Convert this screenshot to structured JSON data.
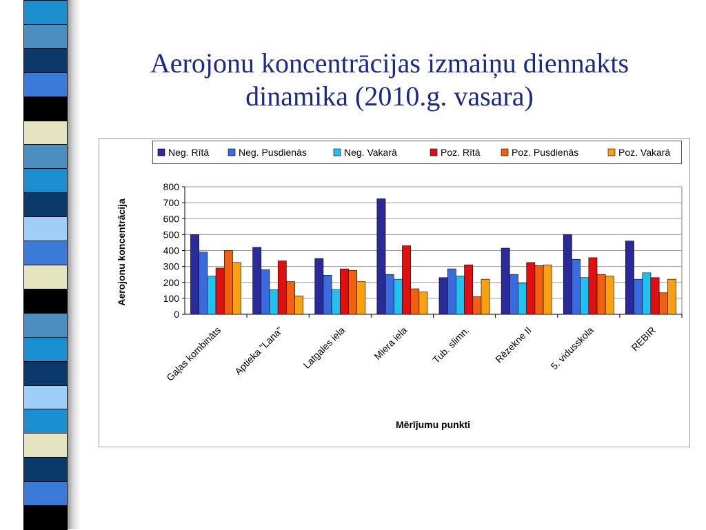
{
  "slide": {
    "title_line1": "Aerojonu koncentrācijas izmaiņu diennakts",
    "title_line2": "dinamika (2010.g. vasara)"
  },
  "decoration": {
    "stripe_colors": [
      "#1a8fd0",
      "#4a8fbf",
      "#0a3a6a",
      "#3a7ad8",
      "#000000",
      "#e4e4c0",
      "#4a8fbf",
      "#1a8fd0",
      "#0a3a6a",
      "#9ecff8",
      "#3a7ad8",
      "#e4e4c0",
      "#000000",
      "#4a8fbf",
      "#1a8fd0",
      "#0a3a6a",
      "#9ecff8",
      "#1a8fd0",
      "#e4e4c0",
      "#0a3a6a",
      "#3a7ad8",
      "#000000"
    ]
  },
  "chart_data": {
    "type": "bar",
    "xlabel": "Mērījumu punkti",
    "ylabel": "Aerojonu koncentrācija",
    "ylim": [
      0,
      800
    ],
    "yticks": [
      0,
      100,
      200,
      300,
      400,
      500,
      600,
      700,
      800
    ],
    "grid": true,
    "legend_position": "top",
    "categories": [
      "Gaļas kombināts",
      "Aptieka \"Lana\"",
      "Latgales iela",
      "Miera iela",
      "Tub. slimn.",
      "Rēzekne II",
      "5. vidusskola",
      "REBIR"
    ],
    "series": [
      {
        "name": "Neg. Rītā",
        "color": "#2a2a9a",
        "values": [
          500,
          420,
          350,
          725,
          230,
          415,
          500,
          460
        ]
      },
      {
        "name": "Neg. Pusdienās",
        "color": "#3a6ae0",
        "values": [
          390,
          280,
          245,
          250,
          285,
          250,
          345,
          220
        ]
      },
      {
        "name": "Neg. Vakarā",
        "color": "#22c0ee",
        "values": [
          240,
          155,
          155,
          220,
          240,
          195,
          230,
          260
        ]
      },
      {
        "name": "Poz. Rītā",
        "color": "#e01010",
        "values": [
          290,
          335,
          285,
          430,
          310,
          325,
          355,
          230
        ]
      },
      {
        "name": "Poz. Pusdienās",
        "color": "#f06010",
        "values": [
          400,
          205,
          275,
          160,
          110,
          305,
          250,
          135
        ]
      },
      {
        "name": "Poz. Vakarā",
        "color": "#f8a010",
        "values": [
          325,
          115,
          205,
          140,
          220,
          310,
          240,
          220
        ]
      }
    ]
  }
}
